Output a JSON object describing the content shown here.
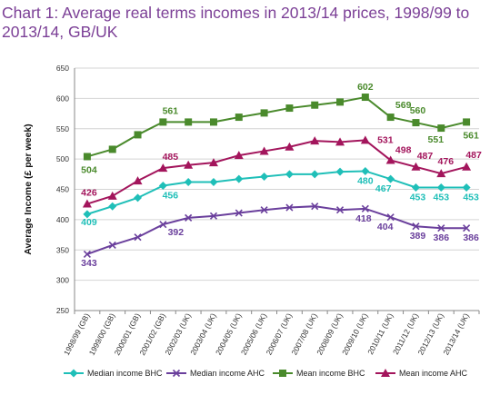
{
  "chart_data": {
    "type": "line",
    "title": "Chart 1: Average real terms incomes in 2013/14 prices, 1998/99 to 2013/14, GB/UK",
    "xlabel": "",
    "ylabel": "Average Income (£ per week)",
    "ylim": [
      250,
      650
    ],
    "yticks": [
      "250",
      "300",
      "350",
      "400",
      "450",
      "500",
      "550",
      "600",
      "650"
    ],
    "grid": true,
    "legend": "bottom",
    "categories": [
      "1998/99 (GB)",
      "1999/00 (GB)",
      "2000/01 (GB)",
      "2001/02 (GB)",
      "2002/03 (UK)",
      "2003/04 (UK)",
      "2004/05 (UK)",
      "2005/06 (UK)",
      "2006/07 (UK)",
      "2007/08 (UK)",
      "2008/09 (UK)",
      "2009/10 (UK)",
      "2010/11 (UK)",
      "2011/12 (UK)",
      "2012/13 (UK)",
      "2013/14 (UK)"
    ],
    "series": [
      {
        "name": "Median income BHC",
        "color": "#1fbfb8",
        "marker": "diamond",
        "values": [
          409,
          422,
          436,
          456,
          462,
          462,
          467,
          471,
          475,
          475,
          479,
          480,
          467,
          453,
          453,
          453
        ],
        "labels": [
          "409",
          "",
          "",
          "456",
          "",
          "",
          "",
          "",
          "",
          "",
          "",
          "480",
          "467",
          "453",
          "453",
          "453"
        ]
      },
      {
        "name": "Median income AHC",
        "color": "#6a3f9c",
        "marker": "cross",
        "values": [
          343,
          358,
          371,
          392,
          403,
          406,
          411,
          416,
          420,
          422,
          416,
          418,
          404,
          389,
          386,
          386
        ],
        "labels": [
          "343",
          "",
          "",
          "392",
          "",
          "",
          "",
          "",
          "",
          "",
          "",
          "418",
          "404",
          "389",
          "386",
          "386"
        ]
      },
      {
        "name": "Mean income BHC",
        "color": "#4a8a2c",
        "marker": "square",
        "values": [
          504,
          516,
          540,
          561,
          561,
          561,
          569,
          576,
          584,
          589,
          594,
          602,
          569,
          560,
          551,
          561
        ],
        "labels": [
          "504",
          "",
          "",
          "561",
          "",
          "",
          "",
          "",
          "",
          "",
          "",
          "602",
          "569",
          "560",
          "551",
          "561"
        ]
      },
      {
        "name": "Mean income AHC",
        "color": "#a3155c",
        "marker": "triangle",
        "values": [
          426,
          439,
          464,
          485,
          490,
          494,
          506,
          513,
          520,
          530,
          528,
          531,
          498,
          487,
          476,
          487
        ],
        "labels": [
          "426",
          "",
          "",
          "485",
          "",
          "",
          "",
          "",
          "",
          "",
          "",
          "531",
          "498",
          "487",
          "476",
          "487"
        ]
      }
    ]
  }
}
